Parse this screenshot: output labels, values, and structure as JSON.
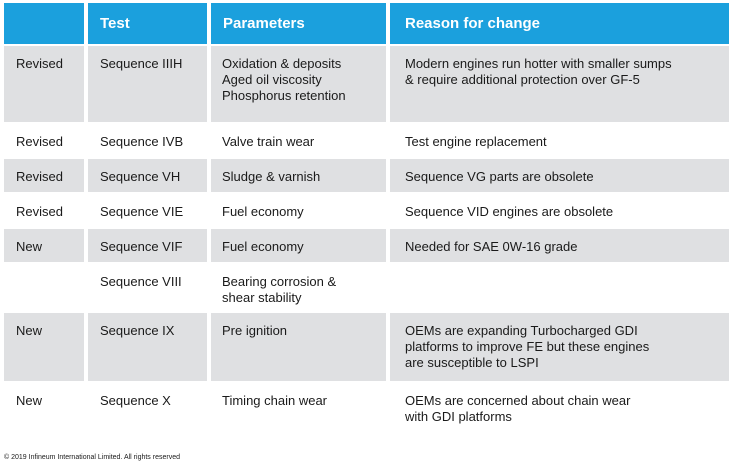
{
  "table": {
    "headers": [
      "",
      "Test",
      "Parameters",
      "Reason for change"
    ],
    "rows": [
      {
        "status": "Revised",
        "test": "Sequence IIIH",
        "parameters": "Oxidation & deposits\nAged oil viscosity\nPhosphorus retention",
        "reason": "Modern engines run hotter with smaller sumps\n& require additional protection over GF-5"
      },
      {
        "status": "Revised",
        "test": "Sequence IVB",
        "parameters": "Valve train wear",
        "reason": "Test engine replacement"
      },
      {
        "status": "Revised",
        "test": "Sequence VH",
        "parameters": "Sludge & varnish",
        "reason": "Sequence VG parts are obsolete"
      },
      {
        "status": "Revised",
        "test": "Sequence VIE",
        "parameters": "Fuel economy",
        "reason": "Sequence VID engines are obsolete"
      },
      {
        "status": "New",
        "test": "Sequence VIF",
        "parameters": "Fuel economy",
        "reason": "Needed for SAE 0W-16 grade"
      },
      {
        "status": "",
        "test": "Sequence VIII",
        "parameters": "Bearing corrosion &\nshear stability",
        "reason": ""
      },
      {
        "status": "New",
        "test": "Sequence IX",
        "parameters": "Pre ignition",
        "reason": "OEMs are expanding Turbocharged GDI\nplatforms to improve FE but these engines\nare susceptible to LSPI"
      },
      {
        "status": "New",
        "test": "Sequence X",
        "parameters": "Timing chain wear",
        "reason": "OEMs are concerned about chain wear\nwith GDI platforms"
      }
    ]
  },
  "footer": {
    "copyright": "© 2019 Infineum International Limited. All rights reserved"
  },
  "colors": {
    "header_bg": "#1ba0dd",
    "row_grey": "#dfe0e2",
    "row_white": "#ffffff"
  }
}
